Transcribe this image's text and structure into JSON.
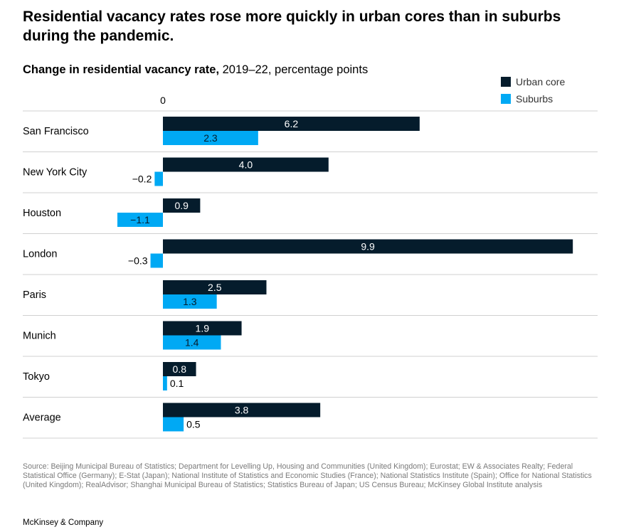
{
  "headline": "Residential vacancy rates rose more quickly in urban cores than in suburbs during the pandemic.",
  "subtitle": {
    "bold": "Change in residential vacancy rate,",
    "rest": " 2019–22, percentage points"
  },
  "source": "Source: Beijing Municipal Bureau of Statistics; Department for Levelling Up, Housing and Communities (United Kingdom); Eurostat; EW & Associates Realty; Federal Statistical Office (Germany); E-Stat (Japan); National Institute of Statistics and Economic Studies (France); National Statistics Institute (Spain); Office for National Statistics (United Kingdom); RealAdvisor; Shanghai Municipal Bureau of Statistics; Statistics Bureau of Japan; US Census Bureau; McKinsey Global Institute analysis",
  "brand": "McKinsey & Company",
  "chart_data": {
    "type": "bar",
    "orientation": "horizontal",
    "categories": [
      "San Francisco",
      "New York City",
      "Houston",
      "London",
      "Paris",
      "Munich",
      "Tokyo",
      "Average"
    ],
    "series": [
      {
        "name": "Urban core",
        "color": "#051c2c",
        "values": [
          6.2,
          4.0,
          0.9,
          9.9,
          2.5,
          1.9,
          0.8,
          3.8
        ],
        "labels": [
          "6.2",
          "4.0",
          "0.9",
          "9.9",
          "2.5",
          "1.9",
          "0.8",
          "3.8"
        ]
      },
      {
        "name": "Suburbs",
        "color": "#00a9f4",
        "values": [
          2.3,
          -0.2,
          -1.1,
          -0.3,
          1.3,
          1.4,
          0.1,
          0.5
        ],
        "labels": [
          "2.3",
          "−0.2",
          "−1.1",
          "−0.3",
          "1.3",
          "1.4",
          "0.1",
          "0.5"
        ]
      }
    ],
    "zero_label": "0",
    "xlim": [
      -1.1,
      9.9
    ],
    "grid": false,
    "legend_position": "top-right"
  }
}
